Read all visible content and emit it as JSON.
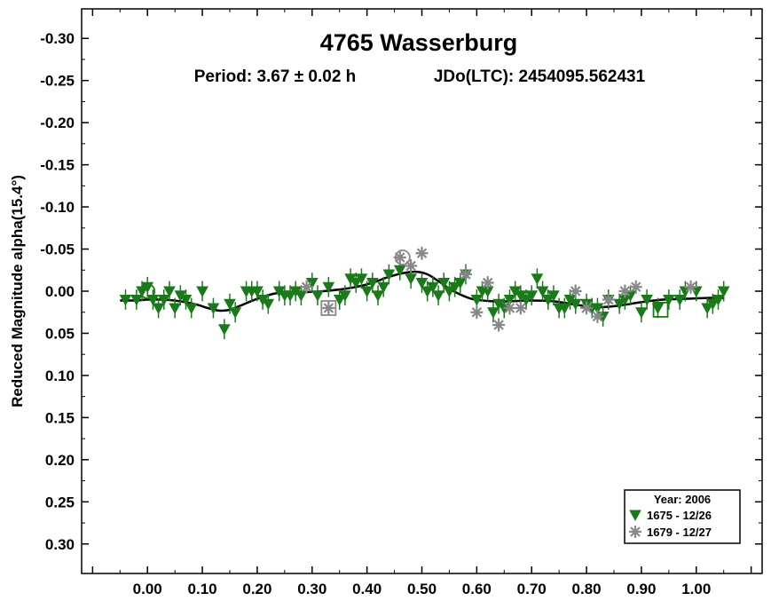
{
  "chart_data": {
    "type": "scatter",
    "title": "4765 Wasserburg",
    "period_text": "Period: 3.67 ± 0.02 h",
    "epoch_text": "JDo(LTC): 2454095.562431",
    "xlabel": "",
    "ylabel": "Reduced Magnitude alpha(15.4°)",
    "xlim": [
      -0.12,
      1.12
    ],
    "ylim": [
      -0.335,
      0.335
    ],
    "y_inverted": true,
    "x_ticks": [
      0.0,
      0.1,
      0.2,
      0.3,
      0.4,
      0.5,
      0.6,
      0.7,
      0.8,
      0.9,
      1.0
    ],
    "x_tick_labels": [
      "0.00",
      "0.10",
      "0.20",
      "0.30",
      "0.40",
      "0.50",
      "0.60",
      "0.70",
      "0.80",
      "0.90",
      "1.00"
    ],
    "y_ticks": [
      -0.3,
      -0.25,
      -0.2,
      -0.15,
      -0.1,
      -0.05,
      0.0,
      0.05,
      0.1,
      0.15,
      0.2,
      0.25,
      0.3
    ],
    "y_tick_labels": [
      "-0.30",
      "-0.25",
      "-0.20",
      "-0.15",
      "-0.10",
      "-0.05",
      "0.00",
      "0.05",
      "0.10",
      "0.15",
      "0.20",
      "0.25",
      "0.30"
    ],
    "grid": false,
    "legend": {
      "title": "Year: 2006",
      "position": "bottom-right",
      "entries": [
        "1675 - 12/26",
        "1679 - 12/27"
      ]
    },
    "series": [
      {
        "name": "1675 - 12/26",
        "color": "#1a7a1a",
        "marker": "triangle-down",
        "error": 0.012,
        "x": [
          -0.04,
          -0.02,
          -0.01,
          0.0,
          0.01,
          0.02,
          0.03,
          0.04,
          0.05,
          0.06,
          0.07,
          0.08,
          0.1,
          0.12,
          0.14,
          0.15,
          0.16,
          0.18,
          0.19,
          0.2,
          0.21,
          0.22,
          0.24,
          0.25,
          0.26,
          0.27,
          0.28,
          0.3,
          0.31,
          0.33,
          0.35,
          0.36,
          0.37,
          0.38,
          0.39,
          0.4,
          0.41,
          0.42,
          0.43,
          0.44,
          0.46,
          0.48,
          0.5,
          0.51,
          0.52,
          0.53,
          0.54,
          0.55,
          0.56,
          0.57,
          0.58,
          0.6,
          0.61,
          0.62,
          0.63,
          0.64,
          0.65,
          0.66,
          0.67,
          0.68,
          0.69,
          0.7,
          0.71,
          0.72,
          0.73,
          0.74,
          0.75,
          0.76,
          0.77,
          0.78,
          0.8,
          0.81,
          0.82,
          0.83,
          0.84,
          0.86,
          0.87,
          0.88,
          0.9,
          0.91,
          0.93,
          0.95,
          0.97,
          0.98,
          1.0,
          1.02,
          1.03,
          1.04,
          1.05
        ],
        "y": [
          0.01,
          0.01,
          0.0,
          -0.005,
          0.01,
          0.02,
          0.01,
          0.0,
          0.02,
          0.005,
          0.01,
          0.02,
          0.0,
          0.02,
          0.045,
          0.015,
          0.025,
          0.0,
          0.0,
          0.0,
          0.01,
          0.015,
          0.0,
          0.005,
          0.005,
          0.0,
          0.005,
          -0.01,
          0.005,
          -0.005,
          0.01,
          0.005,
          -0.015,
          -0.01,
          -0.015,
          0.0,
          -0.01,
          0.005,
          -0.005,
          -0.02,
          -0.025,
          -0.015,
          -0.01,
          0.0,
          -0.005,
          0.005,
          -0.01,
          0.0,
          -0.005,
          -0.01,
          -0.02,
          0.01,
          0.0,
          0.0,
          0.025,
          0.015,
          0.02,
          0.01,
          0.0,
          0.005,
          0.01,
          0.005,
          -0.015,
          0.0,
          0.01,
          0.005,
          0.02,
          0.02,
          0.01,
          0.015,
          0.015,
          0.02,
          0.02,
          0.03,
          0.01,
          0.015,
          0.01,
          0.005,
          0.025,
          0.01,
          0.02,
          0.01,
          0.01,
          0.0,
          0.0,
          0.02,
          0.015,
          0.01,
          0.0
        ]
      },
      {
        "name": "1679 - 12/27",
        "color": "#888888",
        "marker": "asterisk",
        "error": 0.008,
        "x": [
          0.29,
          0.33,
          0.46,
          0.48,
          0.5,
          0.58,
          0.6,
          0.62,
          0.64,
          0.66,
          0.68,
          0.78,
          0.8,
          0.82,
          0.84,
          0.87,
          0.89,
          0.99
        ],
        "y": [
          -0.005,
          0.02,
          -0.04,
          -0.03,
          -0.045,
          -0.02,
          0.025,
          -0.01,
          0.04,
          0.02,
          0.02,
          0.0,
          0.02,
          0.03,
          0.01,
          0.0,
          -0.005,
          -0.005
        ]
      }
    ],
    "open_markers": [
      {
        "shape": "circle",
        "color": "#1a7a1a",
        "x": 0.0,
        "y": 0.0
      },
      {
        "shape": "square",
        "color": "#888888",
        "x": 0.33,
        "y": 0.02
      },
      {
        "shape": "circle",
        "color": "#888888",
        "x": 0.465,
        "y": -0.04
      },
      {
        "shape": "square",
        "color": "#1a7a1a",
        "x": 0.935,
        "y": 0.022
      }
    ],
    "fit_curve": {
      "color": "#000000",
      "x": [
        -0.05,
        -0.02,
        0.0,
        0.03,
        0.06,
        0.09,
        0.11,
        0.13,
        0.15,
        0.17,
        0.2,
        0.23,
        0.26,
        0.29,
        0.32,
        0.35,
        0.38,
        0.41,
        0.44,
        0.47,
        0.49,
        0.51,
        0.53,
        0.55,
        0.57,
        0.59,
        0.61,
        0.63,
        0.66,
        0.7,
        0.74,
        0.78,
        0.82,
        0.86,
        0.9,
        0.94,
        0.98,
        1.02,
        1.05
      ],
      "y": [
        0.011,
        0.011,
        0.01,
        0.01,
        0.012,
        0.016,
        0.02,
        0.023,
        0.022,
        0.017,
        0.009,
        0.003,
        0.001,
        0.001,
        0.0,
        -0.002,
        -0.005,
        -0.01,
        -0.017,
        -0.022,
        -0.023,
        -0.02,
        -0.012,
        -0.003,
        0.004,
        0.009,
        0.011,
        0.012,
        0.012,
        0.011,
        0.012,
        0.016,
        0.019,
        0.017,
        0.013,
        0.01,
        0.009,
        0.008,
        0.008
      ]
    }
  }
}
